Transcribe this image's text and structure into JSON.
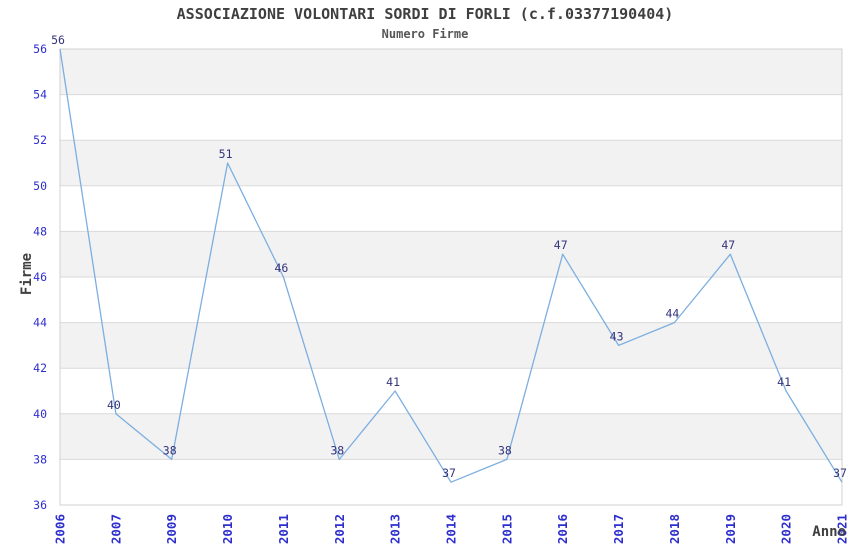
{
  "chart_data": {
    "type": "line",
    "title": "ASSOCIAZIONE VOLONTARI SORDI DI FORLI (c.f.03377190404)",
    "subtitle": "Numero Firme",
    "xlabel": "Anno",
    "ylabel": "Firme",
    "categories": [
      "2006",
      "2007",
      "2009",
      "2010",
      "2011",
      "2012",
      "2013",
      "2014",
      "2015",
      "2016",
      "2017",
      "2018",
      "2019",
      "2020",
      "2021"
    ],
    "values": [
      56,
      40,
      38,
      51,
      46,
      38,
      41,
      37,
      38,
      47,
      43,
      44,
      47,
      41,
      37
    ],
    "point_labels": [
      "56",
      "40",
      "38",
      "51",
      "46",
      "38",
      "41",
      "37",
      "38",
      "47",
      "43",
      "44",
      "47",
      "41",
      "37"
    ],
    "ylim": [
      36,
      56
    ],
    "yticks": [
      36,
      38,
      40,
      42,
      44,
      46,
      48,
      50,
      52,
      54,
      56
    ],
    "grid": "horizontal-bands",
    "legend": "none",
    "colors": {
      "line": "#7cafe0",
      "point_label": "#34347c",
      "tick_label": "#2e2ecf",
      "title": "#3f3f3f",
      "subtitle": "#565656",
      "axis_label": "#3f3f3f",
      "band_gray": "#f2f2f2",
      "gridline": "#d9d9d9",
      "plot_border": "#d0d0d0",
      "background": "#ffffff"
    }
  }
}
